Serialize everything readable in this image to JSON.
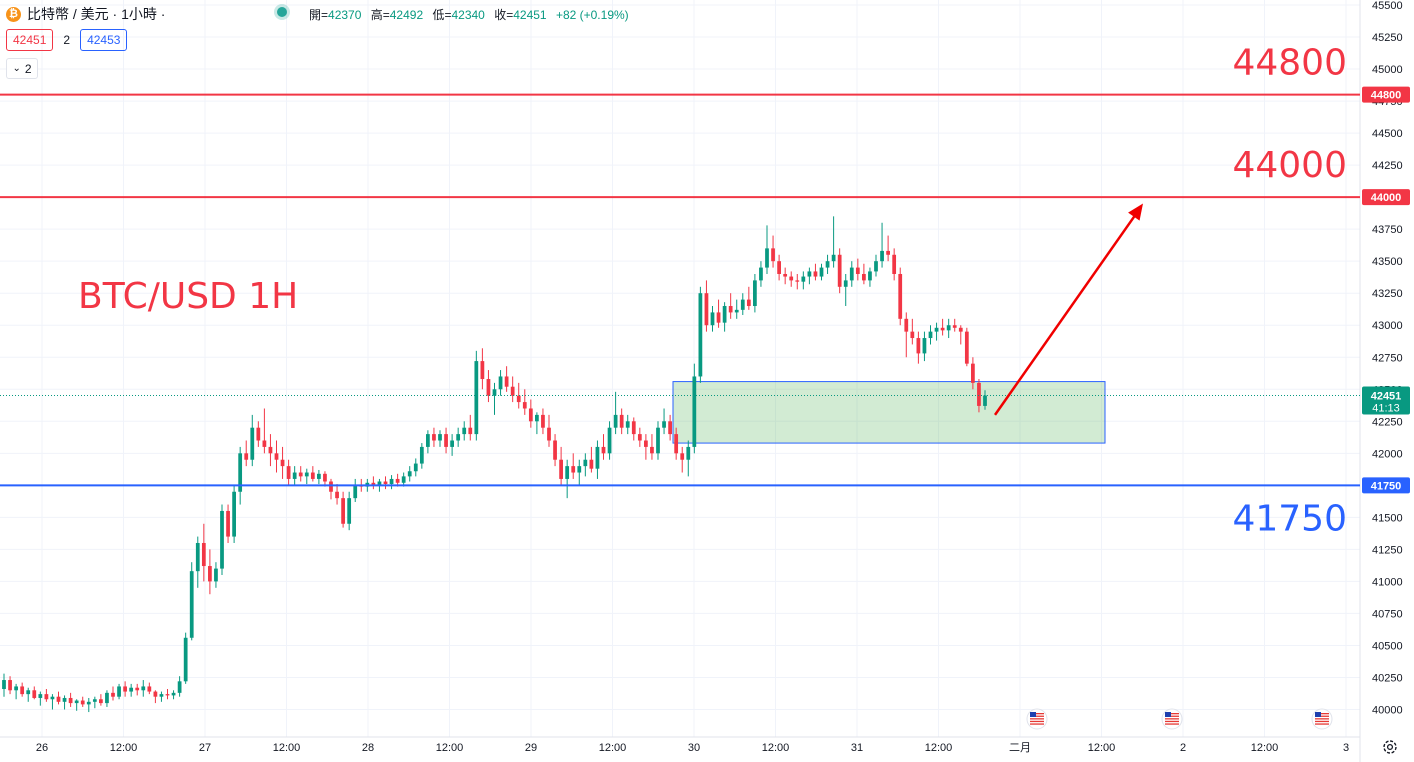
{
  "header": {
    "coin_icon": "bitcoin-icon",
    "symbol_title": "比特幣 / 美元 · 1小時 ·",
    "ohlc": [
      {
        "key": "開=",
        "value": "42370"
      },
      {
        "key": "高=",
        "value": "42492"
      },
      {
        "key": "低=",
        "value": "42340"
      },
      {
        "key": "收=",
        "value": "42451"
      },
      {
        "key": "",
        "value": "+82 (+0.19%)"
      }
    ],
    "sell_price": "42451",
    "spread": "2",
    "buy_price": "42453",
    "indicator_toggle": "2"
  },
  "colors": {
    "up": "#089981",
    "down": "#f23645",
    "resistance": "#f23645",
    "support": "#2962ff",
    "zone_fill": "rgba(76,175,80,0.25)",
    "zone_border": "#2962ff",
    "arrow": "#f00000",
    "grid": "#f0f3fa"
  },
  "chart_data": {
    "type": "candlestick",
    "title": "BTC/USD 1H",
    "ylim": [
      39880,
      45500
    ],
    "y_ticks": [
      40000,
      40250,
      40500,
      40750,
      41000,
      41250,
      41500,
      41750,
      42000,
      42250,
      42500,
      42750,
      43000,
      43250,
      43500,
      43750,
      44000,
      44250,
      44500,
      44750,
      45000,
      45250,
      45500
    ],
    "x_ticks": [
      "26",
      "12:00",
      "27",
      "12:00",
      "28",
      "12:00",
      "29",
      "12:00",
      "30",
      "12:00",
      "31",
      "12:00",
      "二月",
      "12:00",
      "2",
      "12:00",
      "3"
    ],
    "current_price": 42451,
    "countdown": "41:13",
    "levels": [
      {
        "value": 44800,
        "label": "44800",
        "color": "#f23645"
      },
      {
        "value": 44000,
        "label": "44000",
        "color": "#f23645"
      },
      {
        "value": 41750,
        "label": "41750",
        "color": "#2962ff"
      }
    ],
    "zone": {
      "top": 42560,
      "bottom": 42080
    },
    "arrow": {
      "from": 42300,
      "to": 43950
    },
    "event_icons": [
      "us-flag-icon",
      "us-flag-icon",
      "us-flag-icon"
    ],
    "candles": [
      [
        40160,
        40280,
        40100,
        40230
      ],
      [
        40230,
        40260,
        40120,
        40150
      ],
      [
        40150,
        40200,
        40080,
        40180
      ],
      [
        40180,
        40210,
        40100,
        40120
      ],
      [
        40120,
        40170,
        40060,
        40150
      ],
      [
        40150,
        40180,
        40080,
        40090
      ],
      [
        40090,
        40140,
        40030,
        40120
      ],
      [
        40120,
        40160,
        40060,
        40080
      ],
      [
        40080,
        40120,
        40000,
        40100
      ],
      [
        40100,
        40140,
        40040,
        40060
      ],
      [
        40060,
        40110,
        40000,
        40090
      ],
      [
        40090,
        40130,
        40020,
        40050
      ],
      [
        40050,
        40080,
        39990,
        40070
      ],
      [
        40070,
        40100,
        40020,
        40040
      ],
      [
        40040,
        40090,
        39980,
        40060
      ],
      [
        40060,
        40100,
        40010,
        40080
      ],
      [
        40080,
        40120,
        40030,
        40050
      ],
      [
        40050,
        40150,
        40020,
        40130
      ],
      [
        40130,
        40180,
        40070,
        40100
      ],
      [
        40100,
        40200,
        40080,
        40180
      ],
      [
        40180,
        40220,
        40100,
        40140
      ],
      [
        40140,
        40200,
        40100,
        40170
      ],
      [
        40170,
        40200,
        40110,
        40150
      ],
      [
        40150,
        40230,
        40100,
        40180
      ],
      [
        40180,
        40210,
        40120,
        40140
      ],
      [
        40140,
        40150,
        40050,
        40100
      ],
      [
        40100,
        40140,
        40060,
        40120
      ],
      [
        40120,
        40160,
        40080,
        40110
      ],
      [
        40110,
        40150,
        40080,
        40130
      ],
      [
        40130,
        40260,
        40100,
        40220
      ],
      [
        40220,
        40600,
        40200,
        40560
      ],
      [
        40560,
        41150,
        40540,
        41080
      ],
      [
        41080,
        41350,
        40950,
        41300
      ],
      [
        41300,
        41450,
        41000,
        41120
      ],
      [
        41120,
        41250,
        40900,
        41000
      ],
      [
        41000,
        41150,
        40950,
        41100
      ],
      [
        41100,
        41600,
        41050,
        41550
      ],
      [
        41550,
        41600,
        41300,
        41350
      ],
      [
        41350,
        41750,
        41300,
        41700
      ],
      [
        41700,
        42050,
        41600,
        42000
      ],
      [
        42000,
        42100,
        41900,
        41950
      ],
      [
        41950,
        42300,
        41900,
        42200
      ],
      [
        42200,
        42250,
        42050,
        42100
      ],
      [
        42100,
        42350,
        42000,
        42050
      ],
      [
        42050,
        42150,
        41900,
        42000
      ],
      [
        42000,
        42100,
        41850,
        41950
      ],
      [
        41950,
        42050,
        41800,
        41900
      ],
      [
        41900,
        41950,
        41750,
        41800
      ],
      [
        41800,
        41900,
        41750,
        41850
      ],
      [
        41850,
        41900,
        41780,
        41820
      ],
      [
        41820,
        41880,
        41760,
        41850
      ],
      [
        41850,
        41900,
        41780,
        41800
      ],
      [
        41800,
        41870,
        41760,
        41840
      ],
      [
        41840,
        41860,
        41740,
        41780
      ],
      [
        41780,
        41800,
        41640,
        41700
      ],
      [
        41700,
        41760,
        41600,
        41650
      ],
      [
        41650,
        41700,
        41420,
        41450
      ],
      [
        41450,
        41700,
        41400,
        41650
      ],
      [
        41650,
        41800,
        41620,
        41750
      ],
      [
        41750,
        41800,
        41700,
        41740
      ],
      [
        41740,
        41800,
        41700,
        41770
      ],
      [
        41770,
        41820,
        41720,
        41750
      ],
      [
        41750,
        41800,
        41700,
        41780
      ],
      [
        41780,
        41820,
        41720,
        41760
      ],
      [
        41760,
        41830,
        41720,
        41800
      ],
      [
        41800,
        41840,
        41740,
        41770
      ],
      [
        41770,
        41850,
        41740,
        41820
      ],
      [
        41820,
        41900,
        41780,
        41860
      ],
      [
        41860,
        41960,
        41820,
        41920
      ],
      [
        41920,
        42080,
        41880,
        42050
      ],
      [
        42050,
        42180,
        42000,
        42150
      ],
      [
        42150,
        42200,
        42050,
        42100
      ],
      [
        42100,
        42180,
        42050,
        42150
      ],
      [
        42150,
        42200,
        42000,
        42050
      ],
      [
        42050,
        42150,
        41980,
        42100
      ],
      [
        42100,
        42200,
        42050,
        42150
      ],
      [
        42150,
        42250,
        42100,
        42200
      ],
      [
        42200,
        42300,
        42100,
        42150
      ],
      [
        42150,
        42800,
        42100,
        42720
      ],
      [
        42720,
        42820,
        42500,
        42580
      ],
      [
        42580,
        42650,
        42400,
        42450
      ],
      [
        42450,
        42550,
        42300,
        42500
      ],
      [
        42500,
        42650,
        42450,
        42600
      ],
      [
        42600,
        42680,
        42480,
        42520
      ],
      [
        42520,
        42600,
        42400,
        42450
      ],
      [
        42450,
        42550,
        42350,
        42400
      ],
      [
        42400,
        42500,
        42300,
        42350
      ],
      [
        42350,
        42420,
        42200,
        42250
      ],
      [
        42250,
        42320,
        42150,
        42300
      ],
      [
        42300,
        42350,
        42150,
        42200
      ],
      [
        42200,
        42300,
        42050,
        42100
      ],
      [
        42100,
        42150,
        41900,
        41950
      ],
      [
        41950,
        42050,
        41750,
        41800
      ],
      [
        41800,
        41950,
        41650,
        41900
      ],
      [
        41900,
        42000,
        41800,
        41850
      ],
      [
        41850,
        41950,
        41750,
        41900
      ],
      [
        41900,
        42000,
        41820,
        41950
      ],
      [
        41950,
        42050,
        41850,
        41880
      ],
      [
        41880,
        42100,
        41800,
        42050
      ],
      [
        42050,
        42150,
        41950,
        42000
      ],
      [
        42000,
        42250,
        41950,
        42200
      ],
      [
        42200,
        42480,
        42150,
        42300
      ],
      [
        42300,
        42350,
        42150,
        42200
      ],
      [
        42200,
        42300,
        42150,
        42250
      ],
      [
        42250,
        42280,
        42100,
        42150
      ],
      [
        42150,
        42200,
        42050,
        42100
      ],
      [
        42100,
        42150,
        41950,
        42050
      ],
      [
        42050,
        42150,
        41950,
        42000
      ],
      [
        42000,
        42250,
        41950,
        42200
      ],
      [
        42200,
        42350,
        42150,
        42250
      ],
      [
        42250,
        42300,
        42100,
        42150
      ],
      [
        42150,
        42200,
        41950,
        42000
      ],
      [
        42000,
        42050,
        41850,
        41950
      ],
      [
        41950,
        42100,
        41820,
        42050
      ],
      [
        42050,
        42700,
        42000,
        42600
      ],
      [
        42600,
        43300,
        42550,
        43250
      ],
      [
        43250,
        43350,
        42950,
        43000
      ],
      [
        43000,
        43150,
        42950,
        43100
      ],
      [
        43100,
        43200,
        42980,
        43020
      ],
      [
        43020,
        43180,
        42950,
        43150
      ],
      [
        43150,
        43250,
        43050,
        43100
      ],
      [
        43100,
        43200,
        43050,
        43120
      ],
      [
        43120,
        43250,
        43080,
        43200
      ],
      [
        43200,
        43300,
        43120,
        43150
      ],
      [
        43150,
        43400,
        43100,
        43350
      ],
      [
        43350,
        43500,
        43300,
        43450
      ],
      [
        43450,
        43780,
        43400,
        43600
      ],
      [
        43600,
        43700,
        43450,
        43500
      ],
      [
        43500,
        43550,
        43350,
        43400
      ],
      [
        43400,
        43450,
        43320,
        43380
      ],
      [
        43380,
        43420,
        43300,
        43350
      ],
      [
        43350,
        43400,
        43280,
        43340
      ],
      [
        43340,
        43420,
        43280,
        43380
      ],
      [
        43380,
        43450,
        43320,
        43420
      ],
      [
        43420,
        43480,
        43350,
        43380
      ],
      [
        43380,
        43480,
        43350,
        43450
      ],
      [
        43450,
        43550,
        43400,
        43500
      ],
      [
        43500,
        43850,
        43450,
        43550
      ],
      [
        43550,
        43600,
        43250,
        43300
      ],
      [
        43300,
        43400,
        43150,
        43350
      ],
      [
        43350,
        43500,
        43300,
        43450
      ],
      [
        43450,
        43520,
        43350,
        43400
      ],
      [
        43400,
        43480,
        43320,
        43350
      ],
      [
        43350,
        43450,
        43300,
        43420
      ],
      [
        43420,
        43550,
        43380,
        43500
      ],
      [
        43500,
        43800,
        43450,
        43580
      ],
      [
        43580,
        43700,
        43500,
        43550
      ],
      [
        43550,
        43600,
        43350,
        43400
      ],
      [
        43400,
        43450,
        43000,
        43050
      ],
      [
        43050,
        43100,
        42750,
        42950
      ],
      [
        42950,
        43050,
        42850,
        42900
      ],
      [
        42900,
        42950,
        42700,
        42780
      ],
      [
        42780,
        42950,
        42720,
        42900
      ],
      [
        42900,
        43000,
        42850,
        42950
      ],
      [
        42950,
        43020,
        42880,
        42980
      ],
      [
        42980,
        43050,
        42920,
        42960
      ],
      [
        42960,
        43050,
        42900,
        43000
      ],
      [
        43000,
        43050,
        42950,
        42980
      ],
      [
        42980,
        43000,
        42850,
        42950
      ],
      [
        42950,
        42980,
        42680,
        42700
      ],
      [
        42700,
        42750,
        42500,
        42550
      ],
      [
        42550,
        42580,
        42320,
        42370
      ],
      [
        42370,
        42492,
        42340,
        42451
      ]
    ]
  }
}
